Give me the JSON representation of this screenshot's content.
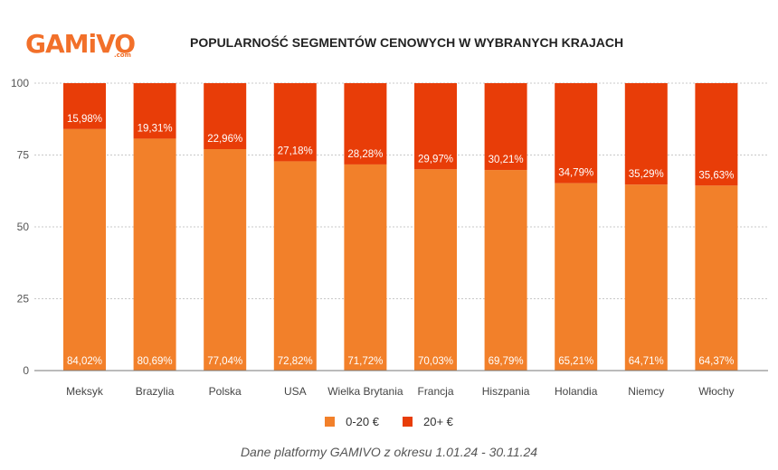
{
  "logo": {
    "brand": "GAMiVO",
    "suffix": ".com"
  },
  "chart_data": {
    "type": "bar",
    "stacked": true,
    "title": "POPULARNOŚĆ SEGMENTÓW CENOWYCH W WYBRANYCH KRAJACH",
    "categories": [
      "Meksyk",
      "Brazylia",
      "Polska",
      "USA",
      "Wielka Brytania",
      "Francja",
      "Hiszpania",
      "Holandia",
      "Niemcy",
      "Włochy"
    ],
    "series": [
      {
        "name": "0-20 €",
        "color": "#f2802a",
        "values": [
          84.02,
          80.69,
          77.04,
          72.82,
          71.72,
          70.03,
          69.79,
          65.21,
          64.71,
          64.37
        ],
        "labels": [
          "84,02%",
          "80,69%",
          "77,04%",
          "72,82%",
          "71,72%",
          "70,03%",
          "69,79%",
          "65,21%",
          "64,71%",
          "64,37%"
        ]
      },
      {
        "name": "20+ €",
        "color": "#e83d08",
        "values": [
          15.98,
          19.31,
          22.96,
          27.18,
          28.28,
          29.97,
          30.21,
          34.79,
          35.29,
          35.63
        ],
        "labels": [
          "15,98%",
          "19,31%",
          "22,96%",
          "27,18%",
          "28,28%",
          "29,97%",
          "30,21%",
          "34,79%",
          "35,29%",
          "35,63%"
        ]
      }
    ],
    "y_ticks": [
      "0",
      "25",
      "50",
      "75",
      "100"
    ],
    "ylim": [
      0,
      100
    ],
    "grid": true,
    "legend_position": "bottom",
    "footnote": "Dane platformy GAMIVO z okresu 1.01.24 - 30.11.24"
  }
}
